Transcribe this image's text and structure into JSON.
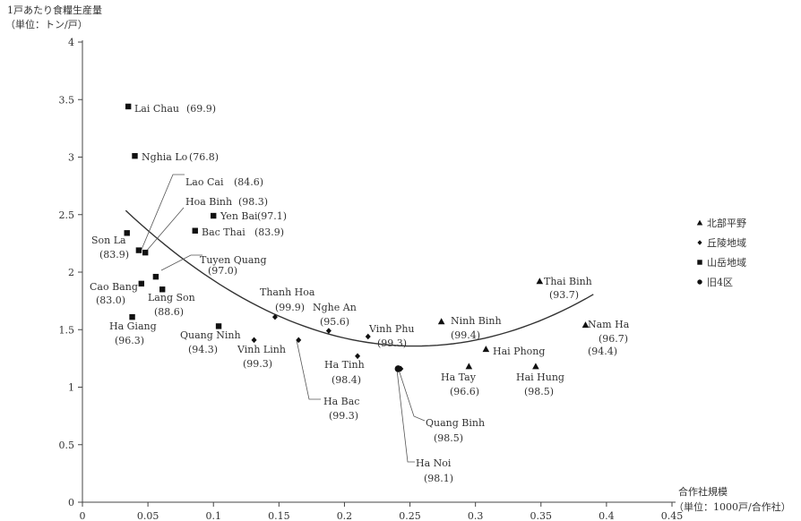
{
  "chart_data": {
    "type": "scatter",
    "ylabel": "1戸あたり食糧生産量",
    "ylabel_unit": "（単位：トン/戸）",
    "xlabel": "合作社規模",
    "xlabel_unit": "（単位：1000戸/合作社）",
    "xlim": [
      0,
      0.45
    ],
    "ylim": [
      0,
      4
    ],
    "x_ticks": [
      "0",
      "0.05",
      "0.1",
      "0.15",
      "0.2",
      "0.25",
      "0.3",
      "0.35",
      "0.4",
      "0.45"
    ],
    "y_ticks": [
      "0",
      "0.5",
      "1",
      "1.5",
      "2",
      "2.5",
      "3",
      "3.5",
      "4"
    ],
    "grid": false,
    "legend_position": "right",
    "series": [
      {
        "name": "北部平野",
        "marker": "triangle",
        "points": [
          {
            "x": 0.274,
            "y": 1.57,
            "label": "Ninh Binh",
            "value_label": "(99.4)"
          },
          {
            "x": 0.349,
            "y": 1.92,
            "label": "Thai Binh",
            "value_label": "(93.7)"
          },
          {
            "x": 0.384,
            "y": 1.54,
            "label": "Nam Ha",
            "value_label": "(96.7)"
          },
          {
            "x": 0.308,
            "y": 1.33,
            "label": "Hai Phong",
            "value_label": "(94.4)"
          },
          {
            "x": 0.295,
            "y": 1.18,
            "label": "Ha Tay",
            "value_label": "(96.6)"
          },
          {
            "x": 0.346,
            "y": 1.18,
            "label": "Hai Hung",
            "value_label": "(98.5)"
          }
        ]
      },
      {
        "name": "丘陵地域",
        "marker": "diamond",
        "points": [
          {
            "x": 0.147,
            "y": 1.61,
            "label": "Thanh Hoa",
            "value_label": "(99.9)"
          },
          {
            "x": 0.188,
            "y": 1.49,
            "label": "Nghe An",
            "value_label": "(95.6)"
          },
          {
            "x": 0.218,
            "y": 1.44,
            "label": "Vinh Phu",
            "value_label": "(99.3)"
          },
          {
            "x": 0.131,
            "y": 1.41,
            "label": "Vinh Linh",
            "value_label": "(99.3)"
          },
          {
            "x": 0.165,
            "y": 1.41,
            "label": "Ha Bac",
            "value_label": "(99.3)"
          },
          {
            "x": 0.21,
            "y": 1.27,
            "label": "Ha Tinh",
            "value_label": "(98.4)"
          },
          {
            "x": 0.243,
            "y": 1.16,
            "label": "Quang Binh",
            "value_label": "(98.5)"
          }
        ]
      },
      {
        "name": "山岳地域",
        "marker": "square",
        "points": [
          {
            "x": 0.035,
            "y": 3.44,
            "label": "Lai Chau",
            "value_label": "(69.9)"
          },
          {
            "x": 0.04,
            "y": 3.01,
            "label": "Nghia Lo",
            "value_label": "(76.8)"
          },
          {
            "x": 0.043,
            "y": 2.19,
            "label": "Lao Cai",
            "value_label": "(84.6)"
          },
          {
            "x": 0.048,
            "y": 2.17,
            "label": "Hoa Binh",
            "value_label": "(98.3)"
          },
          {
            "x": 0.1,
            "y": 2.49,
            "label": "Yen Bai",
            "value_label": "(97.1)"
          },
          {
            "x": 0.086,
            "y": 2.36,
            "label": "Bac Thai",
            "value_label": "(83.9)"
          },
          {
            "x": 0.034,
            "y": 2.34,
            "label": "Son La",
            "value_label": "(83.9)"
          },
          {
            "x": 0.056,
            "y": 1.96,
            "label": "Tuyen Quang",
            "value_label": "(97.0)"
          },
          {
            "x": 0.045,
            "y": 1.9,
            "label": "Cao Bang",
            "value_label": "(83.0)"
          },
          {
            "x": 0.061,
            "y": 1.85,
            "label": "Lang Son",
            "value_label": "(88.6)"
          },
          {
            "x": 0.038,
            "y": 1.61,
            "label": "Ha Giang",
            "value_label": "(96.3)"
          },
          {
            "x": 0.104,
            "y": 1.53,
            "label": "Quang Ninh",
            "value_label": "(94.3)"
          }
        ]
      },
      {
        "name": "旧4区",
        "marker": "circle",
        "points": [
          {
            "x": 0.241,
            "y": 1.16,
            "label": "Ha Noi",
            "value_label": "(98.1)"
          }
        ]
      }
    ],
    "trendline": {
      "type": "quadratic",
      "coefficients": [
        2.915,
        -12.28,
        24.2
      ]
    }
  }
}
